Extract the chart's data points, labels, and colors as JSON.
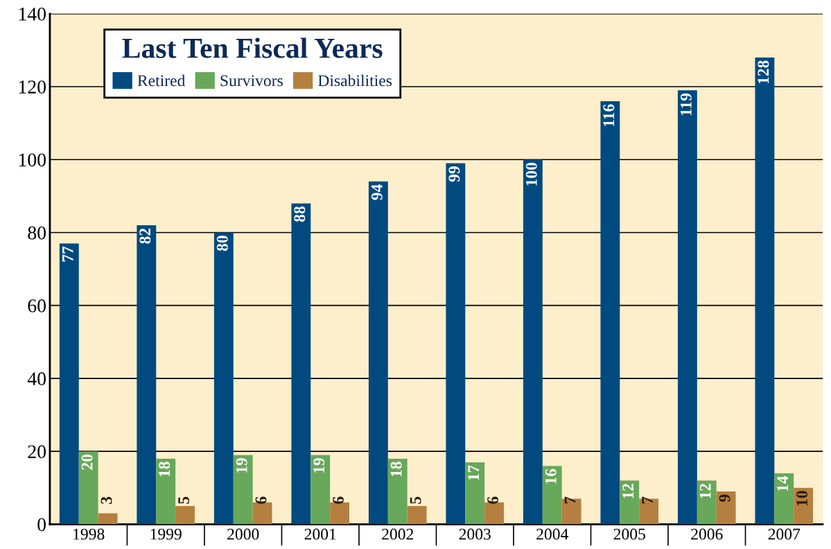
{
  "chart_data": {
    "type": "bar",
    "legend_title": "Last Ten Fiscal Years",
    "categories": [
      "1998",
      "1999",
      "2000",
      "2001",
      "2002",
      "2003",
      "2004",
      "2005",
      "2006",
      "2007"
    ],
    "series": [
      {
        "name": "Retired",
        "color": "#004a80",
        "values": [
          77,
          82,
          80,
          88,
          94,
          99,
          100,
          116,
          119,
          128
        ]
      },
      {
        "name": "Survivors",
        "color": "#68a85a",
        "values": [
          20,
          18,
          19,
          19,
          18,
          17,
          16,
          12,
          12,
          14
        ]
      },
      {
        "name": "Disabilities",
        "color": "#b5803f",
        "values": [
          3,
          5,
          6,
          6,
          5,
          6,
          7,
          7,
          9,
          10
        ]
      }
    ],
    "ylim": [
      0,
      140
    ],
    "yticks": [
      0,
      20,
      40,
      60,
      80,
      100,
      120,
      140
    ],
    "grid": "y",
    "legend": "top left",
    "data_labels": true
  }
}
